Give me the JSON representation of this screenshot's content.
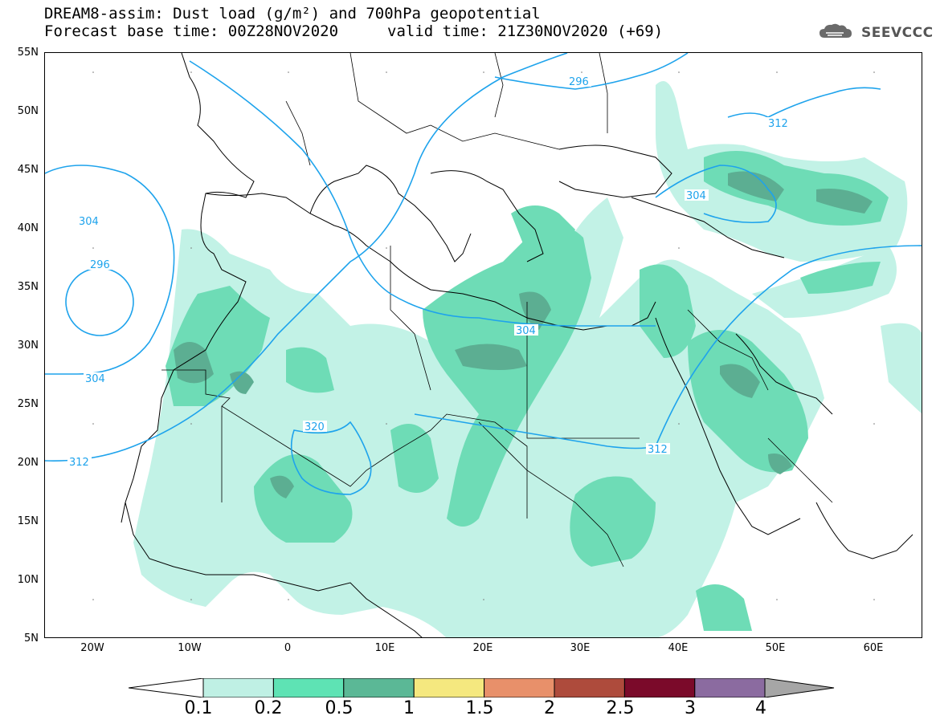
{
  "title": {
    "line1": "DREAM8-assim: Dust load (g/m²) and 700hPa geopotential",
    "line2_left": "Forecast base time: 00Z28NOV2020",
    "line2_right": "valid time: 21Z30NOV2020 (+69)"
  },
  "logo": {
    "icon": "cloud-icon",
    "text": "SEEVCCC"
  },
  "axes": {
    "y_labels": [
      "55N",
      "50N",
      "45N",
      "40N",
      "35N",
      "30N",
      "25N",
      "20N",
      "15N",
      "10N",
      "5N"
    ],
    "x_labels": [
      "20W",
      "10W",
      "0",
      "10E",
      "20E",
      "30E",
      "40E",
      "50E",
      "60E"
    ],
    "lon_range": [
      -25,
      65
    ],
    "lat_range": [
      5,
      55
    ]
  },
  "contours": {
    "labels": [
      "296",
      "312",
      "304",
      "296",
      "304",
      "304",
      "312",
      "320",
      "304",
      "312"
    ]
  },
  "colorbar": {
    "levels": [
      "0.1",
      "0.2",
      "0.5",
      "1",
      "1.5",
      "2",
      "2.5",
      "3",
      "4"
    ],
    "colors": [
      "#bff0e4",
      "#5ee3b4",
      "#5bb896",
      "#f5e87f",
      "#e8906a",
      "#ae4b3c",
      "#7b0a2a",
      "#8b6ba0",
      "#a6a6a6"
    ]
  },
  "shading_colors": {
    "light": "#c2f2e6",
    "mid": "#6edcb6",
    "dark": "#5cae92",
    "contour": "#1ea3ec"
  }
}
